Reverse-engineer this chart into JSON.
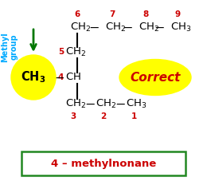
{
  "bg_color": "#ffffff",
  "title_text": "4 – methylnonane",
  "title_color": "#cc0000",
  "title_box_color": "#228822",
  "correct_text": "Correct",
  "correct_color": "#cc0000",
  "correct_ellipse_color": "#ffff00",
  "methyl_group_color": "#00aaff",
  "arrow_color": "#007700",
  "ch3_circle_color": "#ffff00",
  "num_color": "#cc0000",
  "bond_color": "#000000",
  "fs_main": 9.5,
  "fs_num": 7.5,
  "fs_correct": 11,
  "fs_methyl": 7,
  "fs_title": 9.5
}
